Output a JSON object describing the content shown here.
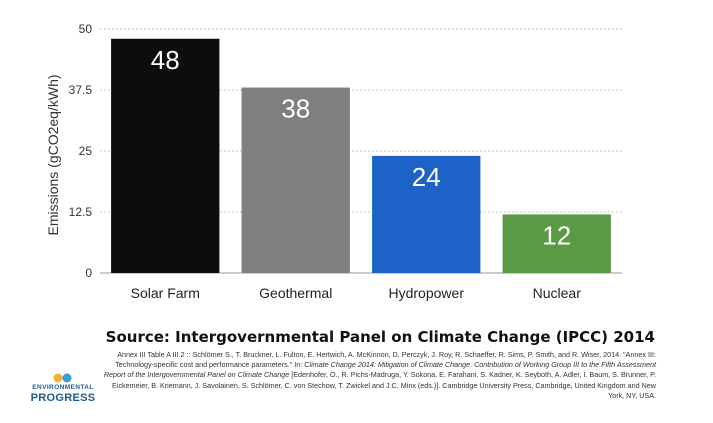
{
  "chart_data": {
    "type": "bar",
    "categories": [
      "Solar Farm",
      "Geothermal",
      "Hydropower",
      "Nuclear"
    ],
    "values": [
      48,
      38,
      24,
      12
    ],
    "data_labels": [
      "48",
      "38",
      "24",
      "12"
    ],
    "colors": [
      "#0b0e0b",
      "#7f7f7f",
      "#1d62c7",
      "#5b9a45"
    ],
    "ylabel": "Emissions (gCO2eq/kWh)",
    "ylim": [
      0,
      50
    ],
    "yticks": [
      0,
      12.5,
      25,
      37.5,
      50
    ],
    "ytick_labels": [
      "0",
      "12.5",
      "25",
      "37.5",
      "50"
    ],
    "grid": true
  },
  "source": {
    "title": "Source: Intergovernmental Panel on Climate Change (IPCC) 2014",
    "citation_part1": "Annex III Table A III.2  :: Schlömer S., T. Bruckner, L. Fulton, E. Hertwich, A. McKinnon, D. Perczyk, J. Roy, R. Schaeffer, R. Sims, P. Smith, and R. Wiser, 2014. \"Annex III: Technology-specific cost and performance parameters.\" In: ",
    "citation_italic": "Climate Change 2014: Mitigation of Climate Change. Contribution of Working Group III to the Fifth Assessment Report of the Intergovernmental Panel on Climate Change",
    "citation_part2": " [Edenhofer, O., R. Pichs-Madruga, Y. Sokona, E. Farahani, S. Kadner, K. Seyboth, A. Adler, I. Baum, S. Brunner, P. Eickemeier, B. Kriemann, J. Savolainen, S. Schlömer, C. von Stechow, T. Zwickel and J.C. Minx (eds.)]. Cambridge University Press, Cambridge, United Kingdom and New York, NY, USA."
  },
  "logo": {
    "line1": "ENVIRONMENTAL",
    "line2": "PROGRESS",
    "colors": [
      "#f2b233",
      "#3a9bd5"
    ]
  }
}
